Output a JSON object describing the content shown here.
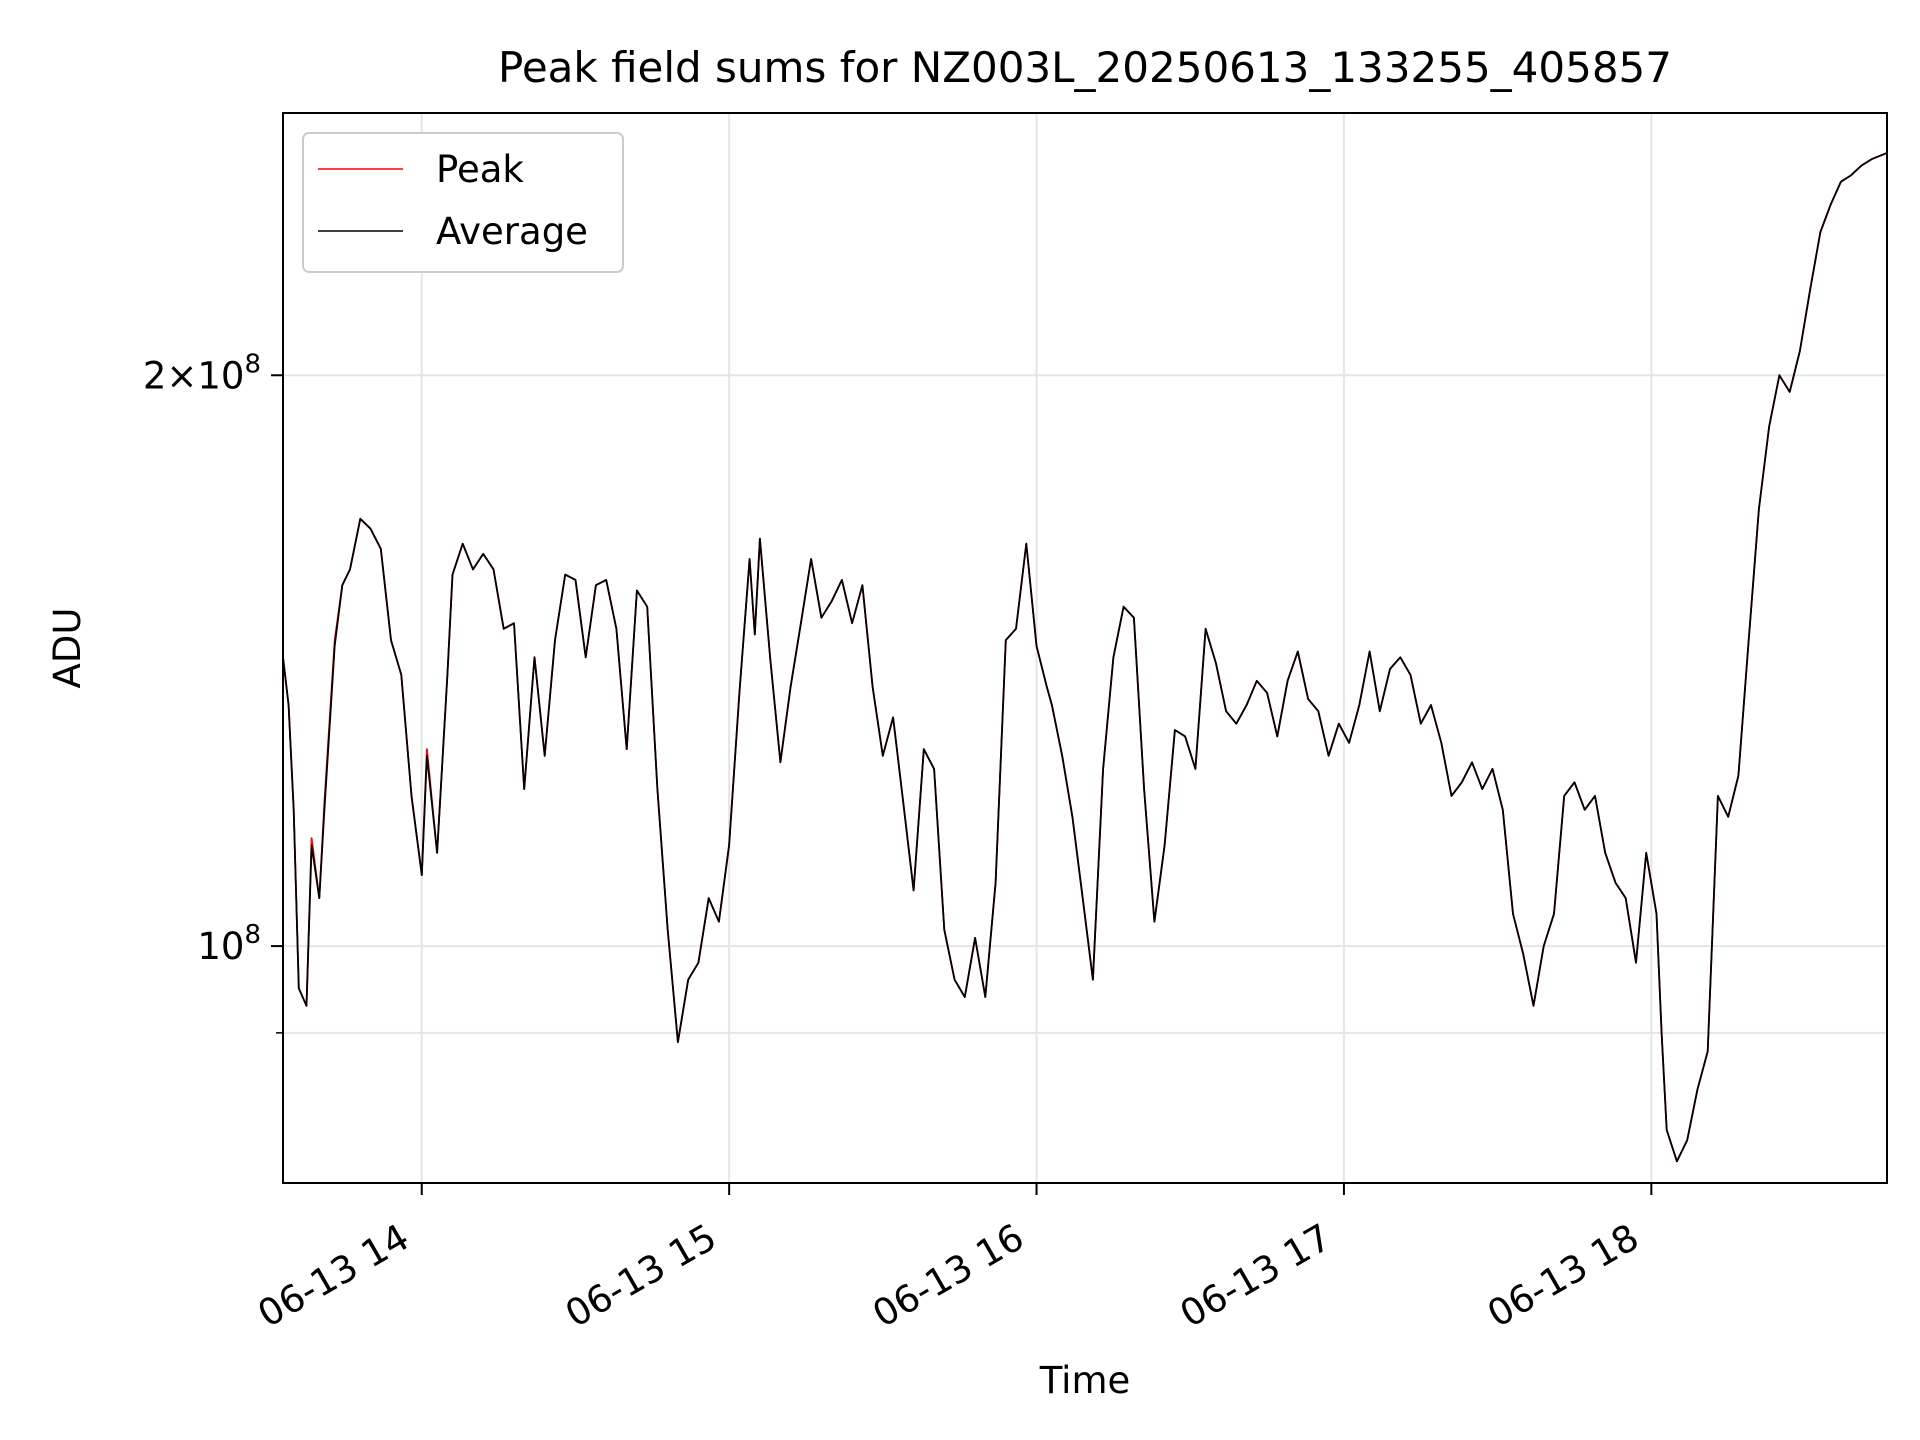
{
  "chart_data": {
    "type": "line",
    "title": "Peak field sums for NZ003L_20250613_133255_405857",
    "xlabel": "Time",
    "ylabel": "ADU",
    "y_scale": "log",
    "ylim": [
      75000000,
      275000000
    ],
    "xlim": [
      "2025-06-13 13:32:55",
      "2025-06-13 18:46:00"
    ],
    "x_ticks": [
      {
        "value": "2025-06-13 14:00:00",
        "label": "06-13 14"
      },
      {
        "value": "2025-06-13 15:00:00",
        "label": "06-13 15"
      },
      {
        "value": "2025-06-13 16:00:00",
        "label": "06-13 16"
      },
      {
        "value": "2025-06-13 17:00:00",
        "label": "06-13 17"
      },
      {
        "value": "2025-06-13 18:00:00",
        "label": "06-13 18"
      }
    ],
    "y_major_ticks": [
      {
        "value": 100000000,
        "base": "10",
        "exp": "8"
      },
      {
        "value": 200000000,
        "base": "2×10",
        "exp": "8"
      }
    ],
    "y_minor_ticks": [
      90000000
    ],
    "grid": true,
    "legend_position": "upper-left",
    "x": [
      "13:32:55",
      "13:34:00",
      "13:35:00",
      "13:36:00",
      "13:37:30",
      "13:38:30",
      "13:40:00",
      "13:41:00",
      "13:43:00",
      "13:44:30",
      "13:46:00",
      "13:48:00",
      "13:50:00",
      "13:52:00",
      "13:54:00",
      "13:56:00",
      "13:58:00",
      "14:00:00",
      "14:01:00",
      "14:03:00",
      "14:05:00",
      "14:06:00",
      "14:08:00",
      "14:10:00",
      "14:12:00",
      "14:14:00",
      "14:16:00",
      "14:18:00",
      "14:20:00",
      "14:22:00",
      "14:24:00",
      "14:26:00",
      "14:28:00",
      "14:30:00",
      "14:32:00",
      "14:34:00",
      "14:36:00",
      "14:38:00",
      "14:40:00",
      "14:42:00",
      "14:44:00",
      "14:46:00",
      "14:48:00",
      "14:50:00",
      "14:52:00",
      "14:54:00",
      "14:56:00",
      "14:58:00",
      "15:00:00",
      "15:02:00",
      "15:04:00",
      "15:05:00",
      "15:06:00",
      "15:08:00",
      "15:10:00",
      "15:12:00",
      "15:14:00",
      "15:16:00",
      "15:18:00",
      "15:20:00",
      "15:22:00",
      "15:24:00",
      "15:26:00",
      "15:28:00",
      "15:30:00",
      "15:32:00",
      "15:34:00",
      "15:36:00",
      "15:38:00",
      "15:40:00",
      "15:42:00",
      "15:44:00",
      "15:46:00",
      "15:48:00",
      "15:50:00",
      "15:52:00",
      "15:54:00",
      "15:56:00",
      "15:58:00",
      "16:00:00",
      "16:02:00",
      "16:03:00",
      "16:05:00",
      "16:07:00",
      "16:09:00",
      "16:11:00",
      "16:13:00",
      "16:15:00",
      "16:17:00",
      "16:19:00",
      "16:21:00",
      "16:23:00",
      "16:25:00",
      "16:27:00",
      "16:29:00",
      "16:31:00",
      "16:33:00",
      "16:35:00",
      "16:37:00",
      "16:39:00",
      "16:41:00",
      "16:43:00",
      "16:45:00",
      "16:47:00",
      "16:49:00",
      "16:51:00",
      "16:53:00",
      "16:55:00",
      "16:57:00",
      "16:59:00",
      "17:01:00",
      "17:03:00",
      "17:05:00",
      "17:07:00",
      "17:09:00",
      "17:11:00",
      "17:13:00",
      "17:15:00",
      "17:17:00",
      "17:19:00",
      "17:21:00",
      "17:23:00",
      "17:25:00",
      "17:27:00",
      "17:29:00",
      "17:31:00",
      "17:33:00",
      "17:35:00",
      "17:37:00",
      "17:39:00",
      "17:41:00",
      "17:43:00",
      "17:45:00",
      "17:47:00",
      "17:49:00",
      "17:51:00",
      "17:53:00",
      "17:55:00",
      "17:57:00",
      "17:59:00",
      "18:01:00",
      "18:02:00",
      "18:03:00",
      "18:05:00",
      "18:07:00",
      "18:09:00",
      "18:11:00",
      "18:13:00",
      "18:15:00",
      "18:17:00",
      "18:19:00",
      "18:21:00",
      "18:23:00",
      "18:25:00",
      "18:27:00",
      "18:29:00",
      "18:31:00",
      "18:33:00",
      "18:35:00",
      "18:37:00",
      "18:39:00",
      "18:41:00",
      "18:43:00",
      "18:46:00"
    ],
    "series": [
      {
        "name": "Peak",
        "color": "#ff0000",
        "values": [
          142,
          134,
          118,
          95,
          93,
          114,
          106,
          119,
          145,
          155,
          158,
          168,
          166,
          162,
          145,
          139,
          120,
          109,
          127,
          112,
          139,
          157,
          163,
          158,
          161,
          158,
          147,
          148,
          121,
          142,
          126,
          145,
          157,
          156,
          142,
          155,
          156,
          147,
          127,
          154,
          151,
          121,
          102,
          89,
          96,
          98,
          106,
          103,
          113,
          136,
          160,
          146,
          164,
          142,
          125,
          137,
          148,
          160,
          149,
          152,
          156,
          148,
          155,
          137,
          126,
          132,
          119,
          107,
          127,
          124,
          102,
          96,
          94,
          101,
          94,
          108,
          145,
          147,
          163,
          144,
          137,
          134,
          126,
          117,
          106,
          96,
          124,
          142,
          151,
          149,
          121,
          103,
          113,
          130,
          129,
          124,
          147,
          141,
          133,
          131,
          134,
          138,
          136,
          129,
          138,
          143,
          135,
          133,
          126,
          131,
          128,
          134,
          143,
          133,
          140,
          142,
          139,
          131,
          134,
          128,
          120,
          122,
          125,
          121,
          124,
          118,
          104,
          99,
          93,
          100,
          104,
          120,
          122,
          118,
          120,
          112,
          108,
          106,
          98,
          112,
          104,
          90,
          80,
          77,
          79,
          84,
          88,
          120,
          117,
          123,
          145,
          170,
          188,
          200,
          196,
          206,
          222,
          238,
          246,
          253,
          255,
          258,
          260,
          262
        ]
      },
      {
        "name": "Average",
        "color": "#000000",
        "values": [
          142,
          134,
          118,
          95,
          93,
          113,
          106,
          118,
          144,
          155,
          158,
          168,
          166,
          162,
          145,
          139,
          120,
          109,
          126,
          112,
          139,
          157,
          163,
          158,
          161,
          158,
          147,
          148,
          121,
          142,
          126,
          145,
          157,
          156,
          142,
          155,
          156,
          147,
          127,
          154,
          151,
          121,
          102,
          89,
          96,
          98,
          106,
          103,
          113,
          136,
          160,
          146,
          164,
          142,
          125,
          137,
          148,
          160,
          149,
          152,
          156,
          148,
          155,
          137,
          126,
          132,
          119,
          107,
          127,
          124,
          102,
          96,
          94,
          101,
          94,
          108,
          145,
          147,
          163,
          144,
          137,
          134,
          126,
          117,
          106,
          96,
          124,
          142,
          151,
          149,
          121,
          103,
          113,
          130,
          129,
          124,
          147,
          141,
          133,
          131,
          134,
          138,
          136,
          129,
          138,
          143,
          135,
          133,
          126,
          131,
          128,
          134,
          143,
          133,
          140,
          142,
          139,
          131,
          134,
          128,
          120,
          122,
          125,
          121,
          124,
          118,
          104,
          99,
          93,
          100,
          104,
          120,
          122,
          118,
          120,
          112,
          108,
          106,
          98,
          112,
          104,
          90,
          80,
          77,
          79,
          84,
          88,
          120,
          117,
          123,
          145,
          170,
          188,
          200,
          196,
          206,
          222,
          238,
          246,
          253,
          255,
          258,
          260,
          262
        ]
      }
    ],
    "value_unit_multiplier": 1000000
  }
}
